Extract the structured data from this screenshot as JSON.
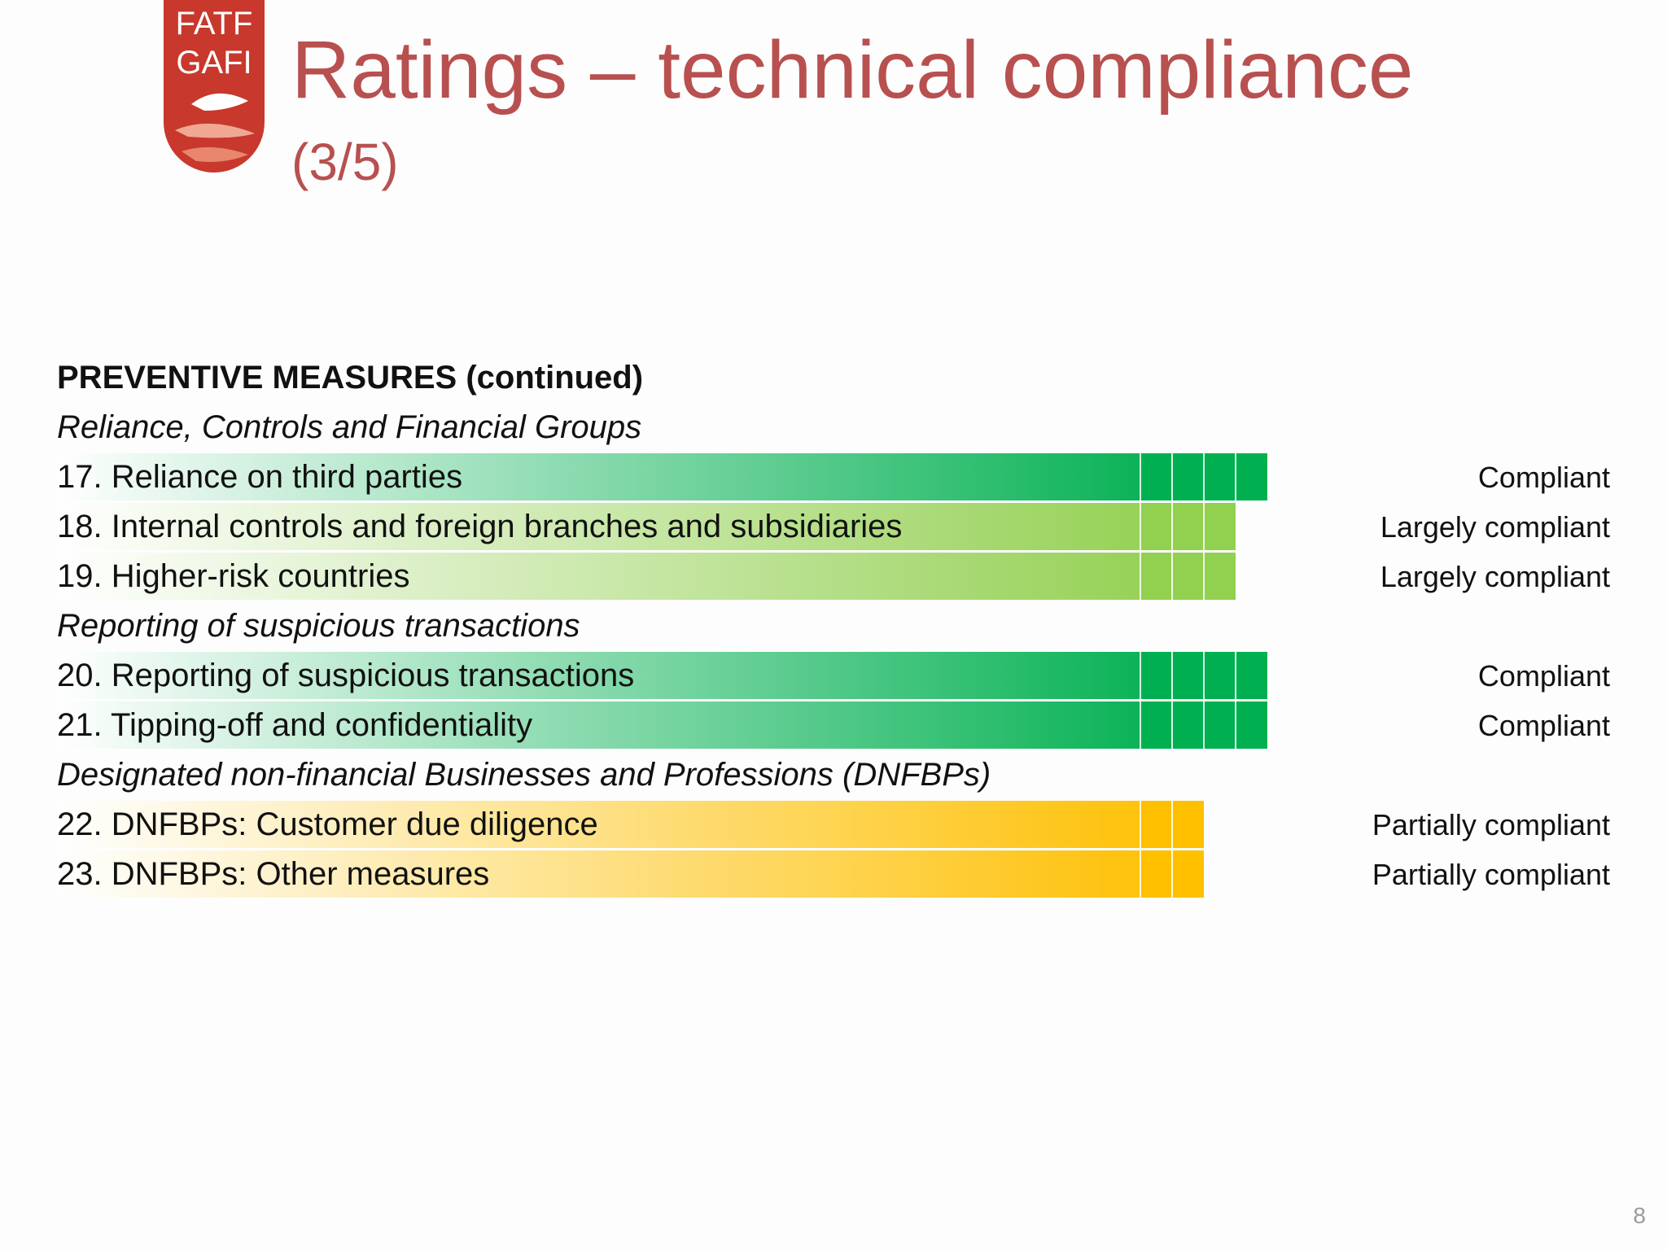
{
  "logo": {
    "line1": "FATF",
    "line2": "GAFI"
  },
  "header": {
    "title": "Ratings – technical compliance",
    "subtitle": "(3/5)"
  },
  "colors": {
    "compliant": "#00b050",
    "largely_compliant": "#92d050",
    "partially_compliant": "#ffc000",
    "title": "#b85050"
  },
  "rows": [
    {
      "type": "heading",
      "label": "PREVENTIVE MEASURES (continued)"
    },
    {
      "type": "subheading",
      "label": "Reliance, Controls and Financial Groups"
    },
    {
      "type": "item",
      "label": "17. Reliance on third parties",
      "rating": "Compliant",
      "level": "compliant",
      "score": 4
    },
    {
      "type": "item",
      "label": "18. Internal controls and foreign branches and subsidiaries",
      "rating": "Largely compliant",
      "level": "largely_compliant",
      "score": 3
    },
    {
      "type": "item",
      "label": "19. Higher-risk countries",
      "rating": "Largely compliant",
      "level": "largely_compliant",
      "score": 3
    },
    {
      "type": "subheading",
      "label": "Reporting of suspicious transactions"
    },
    {
      "type": "item",
      "label": "20. Reporting of suspicious transactions",
      "rating": "Compliant",
      "level": "compliant",
      "score": 4
    },
    {
      "type": "item",
      "label": "21. Tipping-off and confidentiality",
      "rating": "Compliant",
      "level": "compliant",
      "score": 4
    },
    {
      "type": "subheading",
      "label": "Designated non-financial Businesses and Professions (DNFBPs)"
    },
    {
      "type": "item",
      "label": "22. DNFBPs: Customer due diligence",
      "rating": "Partially compliant",
      "level": "partially_compliant",
      "score": 2
    },
    {
      "type": "item",
      "label": "23. DNFBPs: Other measures",
      "rating": "Partially compliant",
      "level": "partially_compliant",
      "score": 2
    }
  ],
  "page_number": "8"
}
